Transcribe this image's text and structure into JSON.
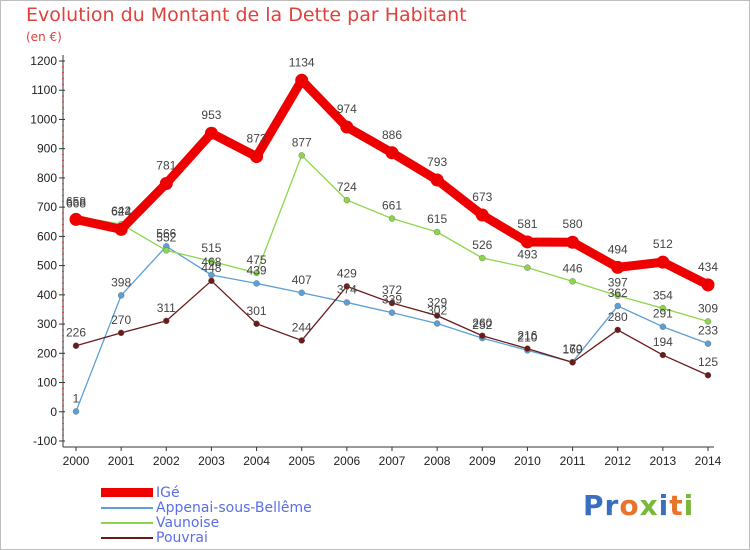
{
  "chart_data": {
    "type": "line",
    "title": "Evolution du Montant de la Dette par Habitant",
    "subtitle": "(en €)",
    "xlabel": "",
    "ylabel": "",
    "x": [
      "2000",
      "2001",
      "2002",
      "2003",
      "2004",
      "2005",
      "2006",
      "2007",
      "2008",
      "2009",
      "2010",
      "2011",
      "2012",
      "2013",
      "2014"
    ],
    "ylim": [
      -100,
      1200
    ],
    "yticks": [
      -100,
      0,
      100,
      200,
      300,
      400,
      500,
      600,
      700,
      800,
      900,
      1000,
      1100,
      1200
    ],
    "grid": false,
    "legend_position": "bottom-left",
    "series": [
      {
        "name": "IGé",
        "color": "#ee0000",
        "values": [
          658,
          624,
          781,
          953,
          873,
          1134,
          974,
          886,
          793,
          673,
          581,
          580,
          494,
          512,
          434
        ]
      },
      {
        "name": "Appenai-sous-Bellême",
        "color": "#5aa0d6",
        "values": [
          1,
          398,
          566,
          468,
          439,
          407,
          374,
          339,
          302,
          252,
          210,
          170,
          362,
          291,
          233
        ]
      },
      {
        "name": "Vaunoise",
        "color": "#8cd64c",
        "values": [
          668,
          642,
          552,
          515,
          475,
          877,
          724,
          661,
          615,
          526,
          493,
          446,
          397,
          354,
          309
        ]
      },
      {
        "name": "Pouvrai",
        "color": "#6b1a1a",
        "values": [
          226,
          270,
          311,
          448,
          301,
          244,
          429,
          372,
          329,
          260,
          216,
          169,
          280,
          194,
          125
        ]
      }
    ]
  },
  "brand": {
    "text": "Proxiti",
    "letter_colors": [
      "#3a6fc0",
      "#3a6fc0",
      "#e8742c",
      "#7ab83c",
      "#3a6fc0",
      "#e8742c",
      "#7ab83c"
    ]
  }
}
